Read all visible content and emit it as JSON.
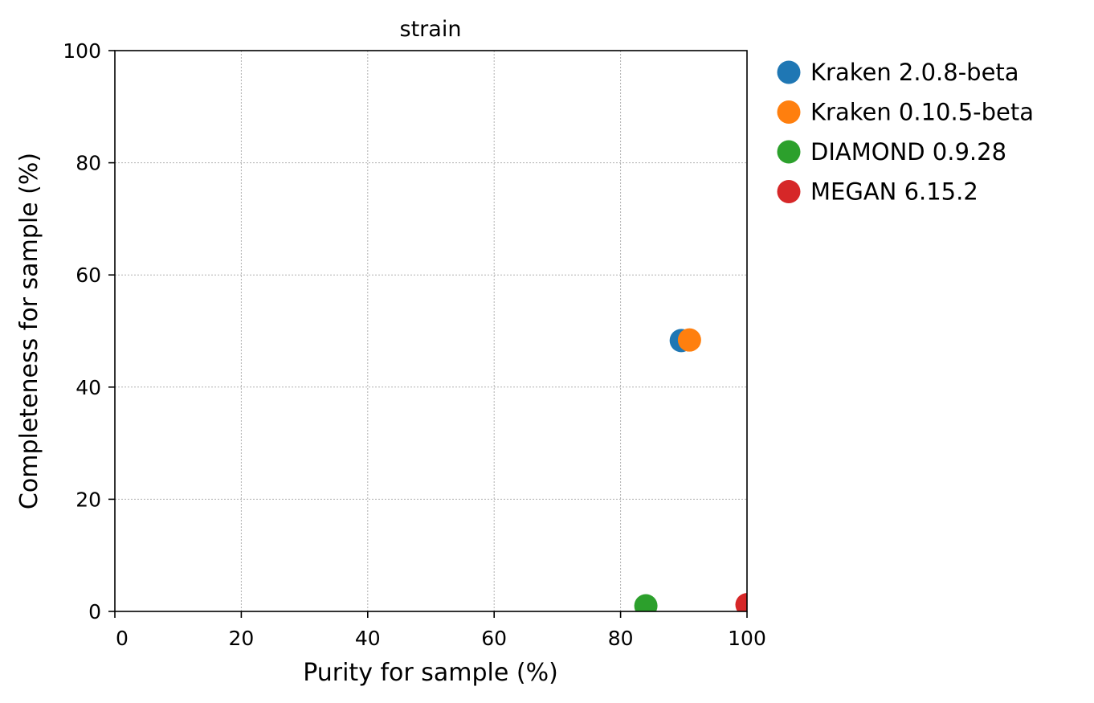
{
  "chart_data": {
    "type": "scatter",
    "title": "strain",
    "xlabel": "Purity for sample (%)",
    "ylabel": "Completeness for sample (%)",
    "xlim": [
      0,
      100
    ],
    "ylim": [
      0,
      100
    ],
    "xticks": [
      "0",
      "20",
      "40",
      "60",
      "80",
      "100"
    ],
    "yticks": [
      "0",
      "20",
      "40",
      "60",
      "80",
      "100"
    ],
    "grid": true,
    "legend_position": "outside-right-top",
    "series": [
      {
        "name": "Kraken 2.0.8-beta",
        "color": "#1f77b4",
        "x": 89.6,
        "y": 48.3
      },
      {
        "name": "Kraken 0.10.5-beta",
        "color": "#ff7f0e",
        "x": 90.9,
        "y": 48.4
      },
      {
        "name": "DIAMOND 0.9.28",
        "color": "#2ca02c",
        "x": 84.0,
        "y": 1.0
      },
      {
        "name": "MEGAN 6.15.2",
        "color": "#d62728",
        "x": 100.0,
        "y": 1.2
      }
    ]
  }
}
